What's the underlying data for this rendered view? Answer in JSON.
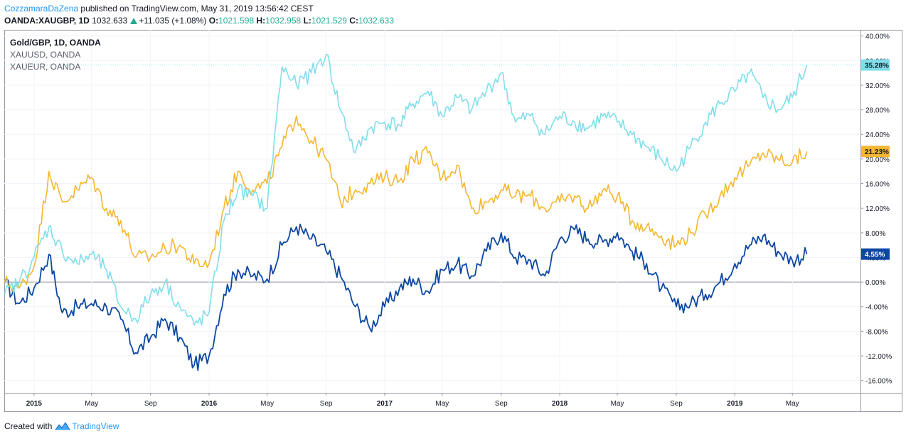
{
  "header": {
    "author": "CozzamaraDaZena",
    "published": "published on TradingView.com, May 31, 2019 13:56:42 CEST",
    "symbol": "OANDA:XAUGBP, 1D",
    "last": "1032.633",
    "change": "+11.035 (+1.08%)",
    "o_label": "O:",
    "o_value": "1021.598",
    "h_label": "H:",
    "h_value": "1032.958",
    "l_label": "L:",
    "l_value": "1021.529",
    "c_label": "C:",
    "c_value": "1032.633"
  },
  "legend": {
    "main": "Gold/GBP, 1D, OANDA",
    "compare1": "XAUUSD, OANDA",
    "compare2": "XAUEUR, OANDA"
  },
  "footer": {
    "created_with": "Created with",
    "brand": "TradingView"
  },
  "colors": {
    "xaugbp": "#0d47a1",
    "xauusd": "#f5b730",
    "xaueur": "#80deea",
    "up": "#22ab94",
    "brand": "#2196f3"
  },
  "chart_data": {
    "type": "line",
    "ylabel": "",
    "ylim": [
      -18.0,
      41.0
    ],
    "y_ticks": [
      "40.00%",
      "36.00%",
      "32.00%",
      "28.00%",
      "24.00%",
      "20.00%",
      "16.00%",
      "12.00%",
      "8.00%",
      "4.00%",
      "0.00%",
      "-4.00%",
      "-8.00%",
      "-12.00%",
      "-16.00%"
    ],
    "x_ticks": [
      {
        "label": "2015",
        "date": "2015-01-01"
      },
      {
        "label": "May",
        "date": "2015-05-01"
      },
      {
        "label": "Sep",
        "date": "2015-09-01"
      },
      {
        "label": "2016",
        "date": "2016-01-01"
      },
      {
        "label": "May",
        "date": "2016-05-01"
      },
      {
        "label": "Sep",
        "date": "2016-09-01"
      },
      {
        "label": "2017",
        "date": "2017-01-01"
      },
      {
        "label": "May",
        "date": "2017-05-01"
      },
      {
        "label": "Sep",
        "date": "2017-09-01"
      },
      {
        "label": "2018",
        "date": "2018-01-01"
      },
      {
        "label": "May",
        "date": "2018-05-01"
      },
      {
        "label": "Sep",
        "date": "2018-09-01"
      },
      {
        "label": "2019",
        "date": "2019-01-01"
      },
      {
        "label": "May",
        "date": "2019-05-01"
      }
    ],
    "xlim": [
      "2014-10-31",
      "2019-09-20"
    ],
    "grid": true,
    "x": [
      "2014-11-01",
      "2014-12-01",
      "2015-01-01",
      "2015-02-01",
      "2015-03-01",
      "2015-04-01",
      "2015-05-01",
      "2015-06-01",
      "2015-07-01",
      "2015-08-01",
      "2015-09-01",
      "2015-10-01",
      "2015-11-01",
      "2015-12-01",
      "2016-01-01",
      "2016-02-01",
      "2016-03-01",
      "2016-04-01",
      "2016-05-01",
      "2016-06-01",
      "2016-07-01",
      "2016-08-01",
      "2016-09-01",
      "2016-10-01",
      "2016-11-01",
      "2016-12-01",
      "2017-01-01",
      "2017-02-01",
      "2017-03-01",
      "2017-04-01",
      "2017-05-01",
      "2017-06-01",
      "2017-07-01",
      "2017-08-01",
      "2017-09-01",
      "2017-10-01",
      "2017-11-01",
      "2017-12-01",
      "2018-01-01",
      "2018-02-01",
      "2018-03-01",
      "2018-04-01",
      "2018-05-01",
      "2018-06-01",
      "2018-07-01",
      "2018-08-01",
      "2018-09-01",
      "2018-10-01",
      "2018-11-01",
      "2018-12-01",
      "2019-01-01",
      "2019-02-01",
      "2019-03-01",
      "2019-04-01",
      "2019-05-01",
      "2019-05-31"
    ],
    "series": [
      {
        "name": "Gold/GBP, 1D, OANDA",
        "color": "#0d47a1",
        "last_label": "4.55%",
        "values": [
          0.0,
          -3.5,
          -1.0,
          4.5,
          -5.0,
          -4.0,
          -3.5,
          -4.0,
          -6.0,
          -11.5,
          -9.0,
          -6.0,
          -9.0,
          -13.5,
          -12.0,
          -2.0,
          2.0,
          1.0,
          0.5,
          6.0,
          9.0,
          7.0,
          5.0,
          1.0,
          -4.0,
          -7.5,
          -4.0,
          -1.0,
          0.5,
          -1.5,
          2.0,
          3.0,
          1.0,
          5.0,
          8.0,
          4.0,
          3.5,
          1.0,
          7.0,
          8.5,
          7.0,
          6.5,
          8.0,
          5.0,
          3.0,
          -1.0,
          -4.0,
          -3.5,
          -2.0,
          0.0,
          3.0,
          6.0,
          7.5,
          5.0,
          3.5,
          4.55
        ]
      },
      {
        "name": "XAUUSD, OANDA",
        "color": "#f5b730",
        "last_label": "21.23%",
        "values": [
          0.0,
          -1.0,
          2.5,
          18.0,
          13.0,
          15.0,
          17.0,
          12.0,
          10.0,
          4.0,
          4.0,
          5.5,
          6.0,
          3.0,
          3.0,
          12.0,
          18.0,
          15.0,
          16.0,
          22.0,
          27.0,
          23.0,
          20.0,
          13.0,
          15.0,
          16.0,
          17.0,
          16.5,
          20.0,
          21.0,
          17.0,
          19.0,
          12.0,
          13.0,
          15.0,
          14.0,
          14.0,
          12.0,
          13.0,
          14.0,
          12.0,
          15.0,
          14.0,
          10.0,
          9.0,
          7.5,
          6.0,
          8.0,
          11.0,
          14.0,
          17.0,
          19.0,
          21.0,
          20.0,
          19.5,
          21.23
        ]
      },
      {
        "name": "XAUEUR, OANDA",
        "color": "#80deea",
        "last_label": "35.28%",
        "values": [
          -2.0,
          0.0,
          4.0,
          9.0,
          5.0,
          3.0,
          4.5,
          2.0,
          -4.0,
          -6.0,
          -2.0,
          0.0,
          -4.0,
          -7.0,
          -5.0,
          10.0,
          15.0,
          14.0,
          12.0,
          35.0,
          32.0,
          34.0,
          37.0,
          28.0,
          21.0,
          25.0,
          26.0,
          25.5,
          29.0,
          31.0,
          27.0,
          30.0,
          28.0,
          31.0,
          34.0,
          26.0,
          27.0,
          24.0,
          27.0,
          26.0,
          25.0,
          27.0,
          26.0,
          24.0,
          22.0,
          20.0,
          18.0,
          22.0,
          26.0,
          29.0,
          31.0,
          34.0,
          30.0,
          28.0,
          30.0,
          35.28
        ]
      }
    ]
  }
}
